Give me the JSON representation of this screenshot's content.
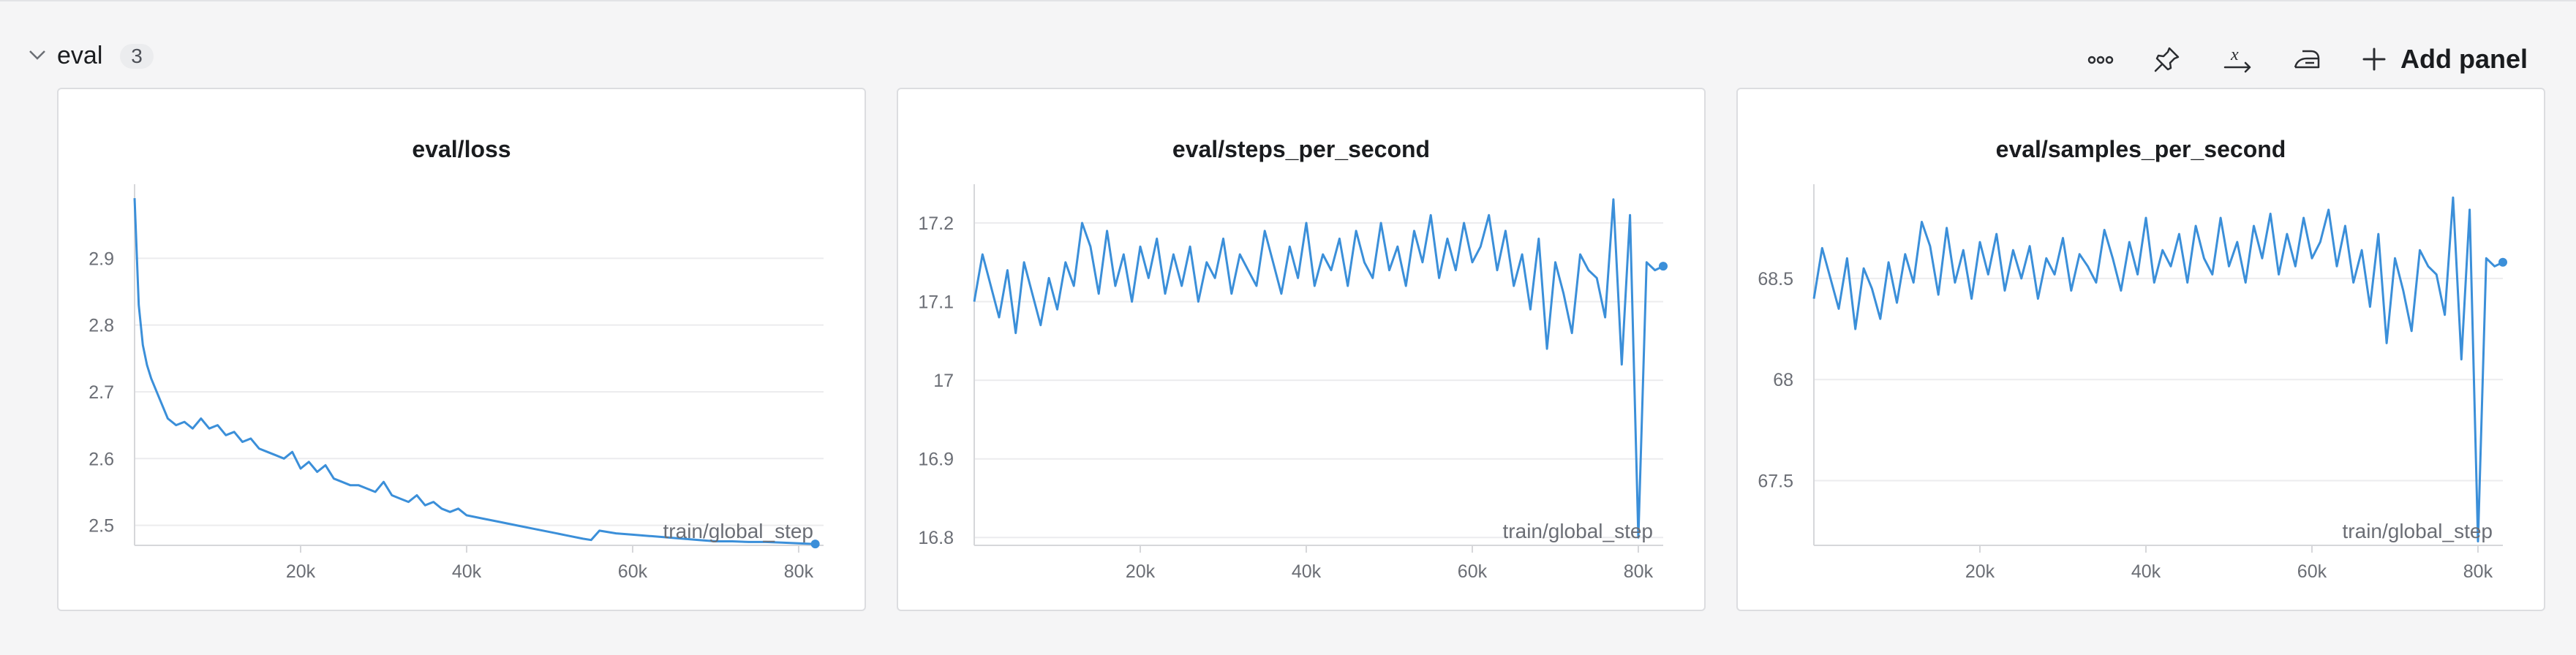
{
  "section": {
    "title": "eval",
    "count": "3",
    "toolbar": {
      "more_icon": "more-horizontal-icon",
      "pin_icon": "pin-icon",
      "expression_icon": "x-variable-icon",
      "smoothing_icon": "iron-icon",
      "add_panel_label": "Add panel"
    }
  },
  "colors": {
    "line": "#3b8fd9",
    "grid": "#ececee",
    "axis": "#d6d7da"
  },
  "panels": [
    {
      "title": "eval/loss",
      "x_axis_name": "train/global_step",
      "xticks": [
        "20k",
        "40k",
        "60k",
        "80k"
      ],
      "yticks": [
        "2.5",
        "2.6",
        "2.7",
        "2.8",
        "2.9"
      ]
    },
    {
      "title": "eval/steps_per_second",
      "x_axis_name": "train/global_step",
      "xticks": [
        "20k",
        "40k",
        "60k",
        "80k"
      ],
      "yticks": [
        "16.8",
        "16.9",
        "17",
        "17.1",
        "17.2"
      ]
    },
    {
      "title": "eval/samples_per_second",
      "x_axis_name": "train/global_step",
      "xticks": [
        "20k",
        "40k",
        "60k",
        "80k"
      ],
      "yticks": [
        "67.5",
        "68",
        "68.5"
      ]
    }
  ],
  "chart_data": [
    {
      "type": "line",
      "title": "eval/loss",
      "xlabel": "train/global_step",
      "ylabel": "",
      "xlim": [
        0,
        83000
      ],
      "ylim": [
        2.47,
        3.0
      ],
      "xticks": [
        20000,
        40000,
        60000,
        80000
      ],
      "yticks": [
        2.5,
        2.6,
        2.7,
        2.8,
        2.9
      ],
      "grid": true,
      "series": [
        {
          "x": [
            0,
            500,
            1000,
            1500,
            2000,
            3000,
            4000,
            5000,
            6000,
            7000,
            8000,
            9000,
            10000,
            11000,
            12000,
            13000,
            14000,
            15000,
            16000,
            17000,
            18000,
            19000,
            20000,
            21000,
            22000,
            23000,
            24000,
            25000,
            26000,
            27000,
            28000,
            29000,
            30000,
            31000,
            32000,
            33000,
            34000,
            35000,
            36000,
            37000,
            38000,
            39000,
            40000,
            42000,
            44000,
            46000,
            48000,
            50000,
            52000,
            54000,
            55000,
            56000,
            58000,
            60000,
            62000,
            64000,
            66000,
            68000,
            70000,
            72000,
            74000,
            76000,
            78000,
            80000,
            82000
          ],
          "y": [
            2.99,
            2.83,
            2.77,
            2.74,
            2.72,
            2.69,
            2.66,
            2.65,
            2.655,
            2.645,
            2.66,
            2.645,
            2.65,
            2.635,
            2.64,
            2.625,
            2.63,
            2.615,
            2.61,
            2.605,
            2.6,
            2.61,
            2.585,
            2.595,
            2.58,
            2.59,
            2.57,
            2.565,
            2.56,
            2.56,
            2.555,
            2.55,
            2.565,
            2.545,
            2.54,
            2.535,
            2.545,
            2.53,
            2.535,
            2.525,
            2.52,
            2.525,
            2.515,
            2.51,
            2.505,
            2.5,
            2.495,
            2.49,
            2.485,
            2.48,
            2.478,
            2.492,
            2.488,
            2.486,
            2.484,
            2.482,
            2.48,
            2.478,
            2.476,
            2.476,
            2.475,
            2.475,
            2.474,
            2.473,
            2.472
          ]
        }
      ]
    },
    {
      "type": "line",
      "title": "eval/steps_per_second",
      "xlabel": "train/global_step",
      "ylabel": "",
      "xlim": [
        0,
        83000
      ],
      "ylim": [
        16.79,
        17.24
      ],
      "xticks": [
        20000,
        40000,
        60000,
        80000
      ],
      "yticks": [
        16.8,
        16.9,
        17.0,
        17.1,
        17.2
      ],
      "grid": true,
      "series": [
        {
          "x": [
            0,
            1000,
            2000,
            3000,
            4000,
            5000,
            6000,
            7000,
            8000,
            9000,
            10000,
            11000,
            12000,
            13000,
            14000,
            15000,
            16000,
            17000,
            18000,
            19000,
            20000,
            21000,
            22000,
            23000,
            24000,
            25000,
            26000,
            27000,
            28000,
            29000,
            30000,
            31000,
            32000,
            33000,
            34000,
            35000,
            36000,
            37000,
            38000,
            39000,
            40000,
            41000,
            42000,
            43000,
            44000,
            45000,
            46000,
            47000,
            48000,
            49000,
            50000,
            51000,
            52000,
            53000,
            54000,
            55000,
            56000,
            57000,
            58000,
            59000,
            60000,
            61000,
            62000,
            63000,
            64000,
            65000,
            66000,
            67000,
            68000,
            69000,
            70000,
            71000,
            72000,
            73000,
            74000,
            75000,
            76000,
            77000,
            78000,
            79000,
            80000,
            81000,
            82000,
            83000
          ],
          "y": [
            17.1,
            17.16,
            17.12,
            17.08,
            17.14,
            17.06,
            17.15,
            17.11,
            17.07,
            17.13,
            17.09,
            17.15,
            17.12,
            17.2,
            17.17,
            17.11,
            17.19,
            17.12,
            17.16,
            17.1,
            17.17,
            17.13,
            17.18,
            17.11,
            17.16,
            17.12,
            17.17,
            17.1,
            17.15,
            17.13,
            17.18,
            17.11,
            17.16,
            17.14,
            17.12,
            17.19,
            17.15,
            17.11,
            17.17,
            17.13,
            17.2,
            17.12,
            17.16,
            17.14,
            17.18,
            17.12,
            17.19,
            17.15,
            17.13,
            17.2,
            17.14,
            17.17,
            17.12,
            17.19,
            17.15,
            17.21,
            17.13,
            17.18,
            17.14,
            17.2,
            17.15,
            17.17,
            17.21,
            17.14,
            17.19,
            17.12,
            17.16,
            17.09,
            17.18,
            17.04,
            17.15,
            17.11,
            17.06,
            17.16,
            17.14,
            17.13,
            17.08,
            17.23,
            17.02,
            17.21,
            16.8,
            17.15,
            17.14,
            17.145
          ]
        }
      ]
    },
    {
      "type": "line",
      "title": "eval/samples_per_second",
      "xlabel": "train/global_step",
      "ylabel": "",
      "xlim": [
        0,
        83000
      ],
      "ylim": [
        67.18,
        68.93
      ],
      "xticks": [
        20000,
        40000,
        60000,
        80000
      ],
      "yticks": [
        67.5,
        68.0,
        68.5
      ],
      "grid": true,
      "series": [
        {
          "x": [
            0,
            1000,
            2000,
            3000,
            4000,
            5000,
            6000,
            7000,
            8000,
            9000,
            10000,
            11000,
            12000,
            13000,
            14000,
            15000,
            16000,
            17000,
            18000,
            19000,
            20000,
            21000,
            22000,
            23000,
            24000,
            25000,
            26000,
            27000,
            28000,
            29000,
            30000,
            31000,
            32000,
            33000,
            34000,
            35000,
            36000,
            37000,
            38000,
            39000,
            40000,
            41000,
            42000,
            43000,
            44000,
            45000,
            46000,
            47000,
            48000,
            49000,
            50000,
            51000,
            52000,
            53000,
            54000,
            55000,
            56000,
            57000,
            58000,
            59000,
            60000,
            61000,
            62000,
            63000,
            64000,
            65000,
            66000,
            67000,
            68000,
            69000,
            70000,
            71000,
            72000,
            73000,
            74000,
            75000,
            76000,
            77000,
            78000,
            79000,
            80000,
            81000,
            82000,
            83000
          ],
          "y": [
            68.4,
            68.65,
            68.5,
            68.35,
            68.6,
            68.25,
            68.55,
            68.45,
            68.3,
            68.58,
            68.38,
            68.62,
            68.48,
            68.78,
            68.66,
            68.42,
            68.75,
            68.48,
            68.64,
            68.4,
            68.68,
            68.52,
            68.72,
            68.44,
            68.64,
            68.5,
            68.66,
            68.4,
            68.6,
            68.52,
            68.7,
            68.44,
            68.62,
            68.56,
            68.48,
            68.74,
            68.6,
            68.44,
            68.68,
            68.52,
            68.8,
            68.48,
            68.64,
            68.56,
            68.72,
            68.48,
            68.76,
            68.6,
            68.52,
            68.8,
            68.56,
            68.68,
            68.48,
            68.76,
            68.6,
            68.82,
            68.52,
            68.72,
            68.56,
            68.8,
            68.6,
            68.68,
            68.84,
            68.56,
            68.76,
            68.48,
            68.64,
            68.36,
            68.72,
            68.18,
            68.6,
            68.44,
            68.24,
            68.64,
            68.56,
            68.52,
            68.32,
            68.9,
            68.1,
            68.84,
            67.2,
            68.6,
            68.56,
            68.58
          ]
        }
      ]
    }
  ]
}
